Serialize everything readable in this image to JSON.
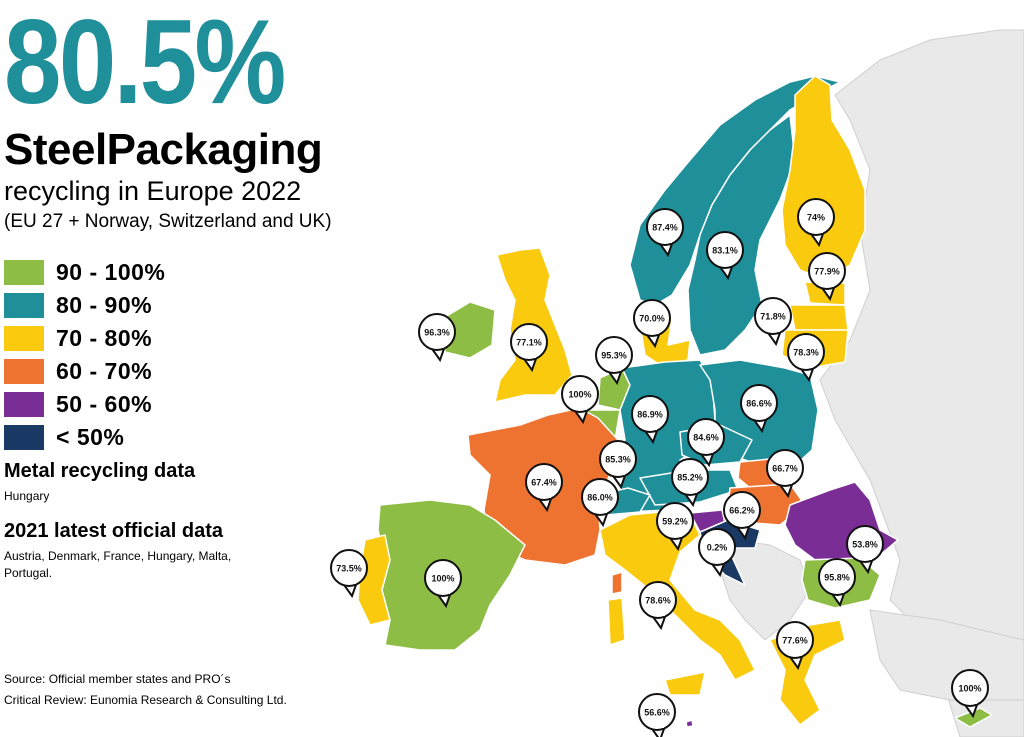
{
  "headline": {
    "value": "80.5%",
    "title": "SteelPackaging",
    "subtitle": "recycling in Europe 2022",
    "scope": "(EU 27 + Norway, Switzerland and UK)"
  },
  "colors": {
    "accent": "#1f8f9a",
    "band_90_100": "#8dbd45",
    "band_80_90": "#1f8f9a",
    "band_70_80": "#f9ca0e",
    "band_60_70": "#ee7331",
    "band_50_60": "#7b2d96",
    "band_lt_50": "#1b3965",
    "non_member": "#e9e9e9",
    "sea": "#ffffff"
  },
  "legend": [
    {
      "label": "90 - 100%",
      "color": "#8dbd45"
    },
    {
      "label": "80 - 90%",
      "color": "#1f8f9a"
    },
    {
      "label": "70 - 80%",
      "color": "#f9ca0e"
    },
    {
      "label": "60 - 70%",
      "color": "#ee7331"
    },
    {
      "label": "50 - 60%",
      "color": "#7b2d96"
    },
    {
      "label": "< 50%",
      "color": "#1b3965"
    }
  ],
  "notes": {
    "metal_heading": "Metal recycling data",
    "metal_text": "Hungary",
    "official_heading": "2021 latest official data",
    "official_text": "Austria, Denmark, France, Hungary, Malta, Portugal."
  },
  "source": {
    "line1": "Source: Official member states and PRO´s",
    "line2": "Critical Review: Eunomia Research & Consulting Ltd."
  },
  "markers": [
    {
      "id": "ireland",
      "value": "96.3%"
    },
    {
      "id": "uk",
      "value": "77.1%"
    },
    {
      "id": "norway",
      "value": "87.4%"
    },
    {
      "id": "sweden",
      "value": "83.1%"
    },
    {
      "id": "finland",
      "value": "74%"
    },
    {
      "id": "estonia",
      "value": "77.9%"
    },
    {
      "id": "latvia",
      "value": "71.8%"
    },
    {
      "id": "lithuania",
      "value": "78.3%"
    },
    {
      "id": "denmark",
      "value": "70.0%"
    },
    {
      "id": "netherlands",
      "value": "95.3%"
    },
    {
      "id": "belgium",
      "value": "100%"
    },
    {
      "id": "germany",
      "value": "86.9%"
    },
    {
      "id": "poland",
      "value": "86.6%"
    },
    {
      "id": "czechia",
      "value": "84.6%"
    },
    {
      "id": "luxembourg",
      "value": "85.3%"
    },
    {
      "id": "austria",
      "value": "85.2%"
    },
    {
      "id": "slovakia",
      "value": "66.7%"
    },
    {
      "id": "france",
      "value": "67.4%"
    },
    {
      "id": "switzerland",
      "value": "86.0%"
    },
    {
      "id": "hungary",
      "value": "66.2%"
    },
    {
      "id": "slovenia",
      "value": "59.2%"
    },
    {
      "id": "croatia",
      "value": "0.2%"
    },
    {
      "id": "romania",
      "value": "53.8%"
    },
    {
      "id": "bulgaria",
      "value": "95.8%"
    },
    {
      "id": "portugal",
      "value": "73.5%"
    },
    {
      "id": "spain",
      "value": "100%"
    },
    {
      "id": "italy",
      "value": "78.6%"
    },
    {
      "id": "greece",
      "value": "77.6%"
    },
    {
      "id": "malta",
      "value": "56.6%"
    },
    {
      "id": "cyprus",
      "value": "100%"
    }
  ]
}
